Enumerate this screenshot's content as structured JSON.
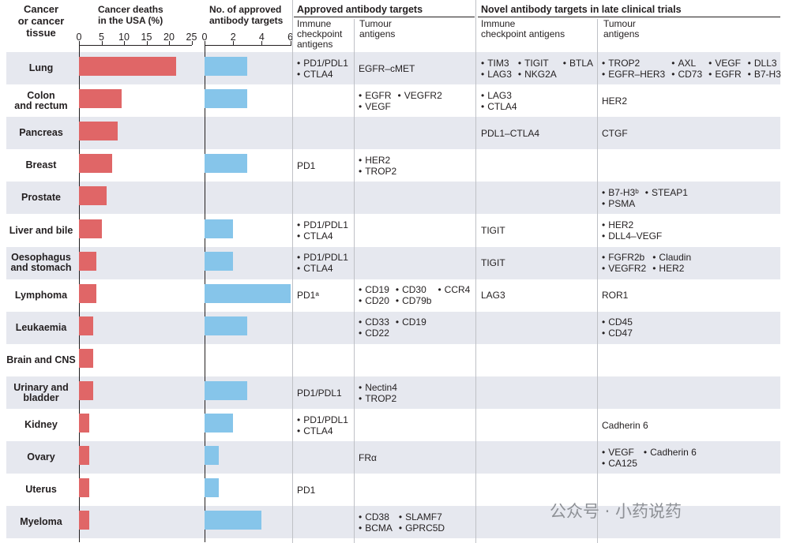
{
  "headers": {
    "tissue": "Cancer\nor cancer\ntissue",
    "deaths": "Cancer deaths\nin the USA (%)",
    "approved_count": "No. of approved\nantibody targets",
    "approved": "Approved antibody targets",
    "novel": "Novel antibody targets in late clinical trials",
    "immune": "Immune\ncheckpoint\nantigens",
    "tumour": "Tumour\nantigens",
    "immune2": "Immune\ncheckpoint antigens",
    "tumour2": "Tumour\nantigens"
  },
  "axes": {
    "deaths_ticks": [
      "0",
      "5",
      "10",
      "15",
      "20",
      "25"
    ],
    "count_ticks": [
      "0",
      "2",
      "4",
      "6"
    ]
  },
  "colors": {
    "deaths_bar": "#e06667",
    "count_bar": "#86c5ea",
    "band": "#e6e8ef"
  },
  "watermark": "公众号 · 小药说药",
  "chart_data": {
    "type": "bar",
    "categories": [
      "Lung",
      "Colon\nand rectum",
      "Pancreas",
      "Breast",
      "Prostate",
      "Liver and bile",
      "Oesophagus\nand stomach",
      "Lymphoma",
      "Leukaemia",
      "Brain and CNS",
      "Urinary and\nbladder",
      "Kidney",
      "Ovary",
      "Uterus",
      "Myeloma"
    ],
    "series": [
      {
        "name": "Cancer deaths in the USA (%)",
        "values": [
          21.5,
          9.4,
          8.6,
          7.4,
          6.2,
          5.1,
          3.9,
          3.9,
          3.1,
          3.1,
          3.1,
          2.3,
          2.3,
          2.3,
          2.3
        ],
        "xlim": [
          0,
          25
        ]
      },
      {
        "name": "No. of approved antibody targets",
        "values": [
          3,
          3,
          0,
          3,
          0,
          2,
          2,
          6,
          3,
          0,
          3,
          2,
          1,
          1,
          4
        ],
        "xlim": [
          0,
          6
        ]
      }
    ]
  },
  "rows": [
    {
      "label": "Lung",
      "approved_immune": {
        "bullet": true,
        "items": [
          "PD1/PDL1",
          "CTLA4"
        ]
      },
      "approved_tumour": {
        "bullet": false,
        "items": [
          "EGFR–cMET"
        ]
      },
      "novel_immune": {
        "bullet": true,
        "cols": 3,
        "items": [
          "TIM3",
          "TIGIT",
          "BTLA",
          "LAG3",
          "NKG2A"
        ]
      },
      "novel_tumour": {
        "bullet": true,
        "cols": 4,
        "items": [
          "TROP2",
          "AXL",
          "VEGF",
          "DLL3",
          "EGFR–HER3",
          "CD73",
          "EGFR",
          "B7-H3"
        ]
      }
    },
    {
      "label": "Colon\nand rectum",
      "approved_immune": {
        "bullet": false,
        "items": []
      },
      "approved_tumour": {
        "bullet": true,
        "cols": 2,
        "items": [
          "EGFR",
          "VEGFR2",
          "VEGF"
        ]
      },
      "novel_immune": {
        "bullet": true,
        "items": [
          "LAG3",
          "CTLA4"
        ]
      },
      "novel_tumour": {
        "bullet": false,
        "items": [
          "HER2"
        ]
      }
    },
    {
      "label": "Pancreas",
      "approved_immune": {
        "bullet": false,
        "items": []
      },
      "approved_tumour": {
        "bullet": false,
        "items": []
      },
      "novel_immune": {
        "bullet": false,
        "items": [
          "PDL1–CTLA4"
        ]
      },
      "novel_tumour": {
        "bullet": false,
        "items": [
          "CTGF"
        ]
      }
    },
    {
      "label": "Breast",
      "approved_immune": {
        "bullet": false,
        "items": [
          "PD1"
        ]
      },
      "approved_tumour": {
        "bullet": true,
        "items": [
          "HER2",
          "TROP2"
        ]
      },
      "novel_immune": {
        "bullet": false,
        "items": []
      },
      "novel_tumour": {
        "bullet": false,
        "items": []
      }
    },
    {
      "label": "Prostate",
      "approved_immune": {
        "bullet": false,
        "items": []
      },
      "approved_tumour": {
        "bullet": false,
        "items": []
      },
      "novel_immune": {
        "bullet": false,
        "items": []
      },
      "novel_tumour": {
        "bullet": true,
        "cols": 2,
        "items": [
          "B7-H3ᵇ",
          "STEAP1",
          "PSMA"
        ]
      }
    },
    {
      "label": "Liver and bile",
      "approved_immune": {
        "bullet": true,
        "items": [
          "PD1/PDL1",
          "CTLA4"
        ]
      },
      "approved_tumour": {
        "bullet": false,
        "items": []
      },
      "novel_immune": {
        "bullet": false,
        "items": [
          "TIGIT"
        ]
      },
      "novel_tumour": {
        "bullet": true,
        "items": [
          "HER2",
          "DLL4–VEGF"
        ]
      }
    },
    {
      "label": "Oesophagus\nand stomach",
      "approved_immune": {
        "bullet": true,
        "items": [
          "PD1/PDL1",
          "CTLA4"
        ]
      },
      "approved_tumour": {
        "bullet": false,
        "items": []
      },
      "novel_immune": {
        "bullet": false,
        "items": [
          "TIGIT"
        ]
      },
      "novel_tumour": {
        "bullet": true,
        "cols": 2,
        "items": [
          "FGFR2b",
          "Claudin",
          "VEGFR2",
          "HER2"
        ]
      }
    },
    {
      "label": "Lymphoma",
      "approved_immune": {
        "bullet": false,
        "items": [
          "PD1ᵃ"
        ]
      },
      "approved_tumour": {
        "bullet": true,
        "cols": 3,
        "items": [
          "CD19",
          "CD30",
          "CCR4",
          "CD20",
          "CD79b"
        ]
      },
      "novel_immune": {
        "bullet": false,
        "items": [
          "LAG3"
        ]
      },
      "novel_tumour": {
        "bullet": false,
        "items": [
          "ROR1"
        ]
      }
    },
    {
      "label": "Leukaemia",
      "approved_immune": {
        "bullet": false,
        "items": []
      },
      "approved_tumour": {
        "bullet": true,
        "cols": 2,
        "items": [
          "CD33",
          "CD19",
          "CD22"
        ]
      },
      "novel_immune": {
        "bullet": false,
        "items": []
      },
      "novel_tumour": {
        "bullet": true,
        "items": [
          "CD45",
          "CD47"
        ]
      }
    },
    {
      "label": "Brain and CNS",
      "approved_immune": {
        "bullet": false,
        "items": []
      },
      "approved_tumour": {
        "bullet": false,
        "items": []
      },
      "novel_immune": {
        "bullet": false,
        "items": []
      },
      "novel_tumour": {
        "bullet": false,
        "items": []
      }
    },
    {
      "label": "Urinary and\nbladder",
      "approved_immune": {
        "bullet": false,
        "items": [
          "PD1/PDL1"
        ]
      },
      "approved_tumour": {
        "bullet": true,
        "items": [
          "Nectin4",
          "TROP2"
        ]
      },
      "novel_immune": {
        "bullet": false,
        "items": []
      },
      "novel_tumour": {
        "bullet": false,
        "items": []
      }
    },
    {
      "label": "Kidney",
      "approved_immune": {
        "bullet": true,
        "items": [
          "PD1/PDL1",
          "CTLA4"
        ]
      },
      "approved_tumour": {
        "bullet": false,
        "items": []
      },
      "novel_immune": {
        "bullet": false,
        "items": []
      },
      "novel_tumour": {
        "bullet": false,
        "items": [
          "Cadherin 6"
        ]
      }
    },
    {
      "label": "Ovary",
      "approved_immune": {
        "bullet": false,
        "items": []
      },
      "approved_tumour": {
        "bullet": false,
        "items": [
          "FRα"
        ]
      },
      "novel_immune": {
        "bullet": false,
        "items": []
      },
      "novel_tumour": {
        "bullet": true,
        "cols": 2,
        "items": [
          "VEGF",
          "Cadherin 6",
          "CA125"
        ]
      }
    },
    {
      "label": "Uterus",
      "approved_immune": {
        "bullet": false,
        "items": [
          "PD1"
        ]
      },
      "approved_tumour": {
        "bullet": false,
        "items": []
      },
      "novel_immune": {
        "bullet": false,
        "items": []
      },
      "novel_tumour": {
        "bullet": false,
        "items": []
      }
    },
    {
      "label": "Myeloma",
      "approved_immune": {
        "bullet": false,
        "items": []
      },
      "approved_tumour": {
        "bullet": true,
        "cols": 2,
        "items": [
          "CD38",
          "SLAMF7",
          "BCMA",
          "GPRC5D"
        ]
      },
      "novel_immune": {
        "bullet": false,
        "items": []
      },
      "novel_tumour": {
        "bullet": false,
        "items": []
      }
    }
  ]
}
